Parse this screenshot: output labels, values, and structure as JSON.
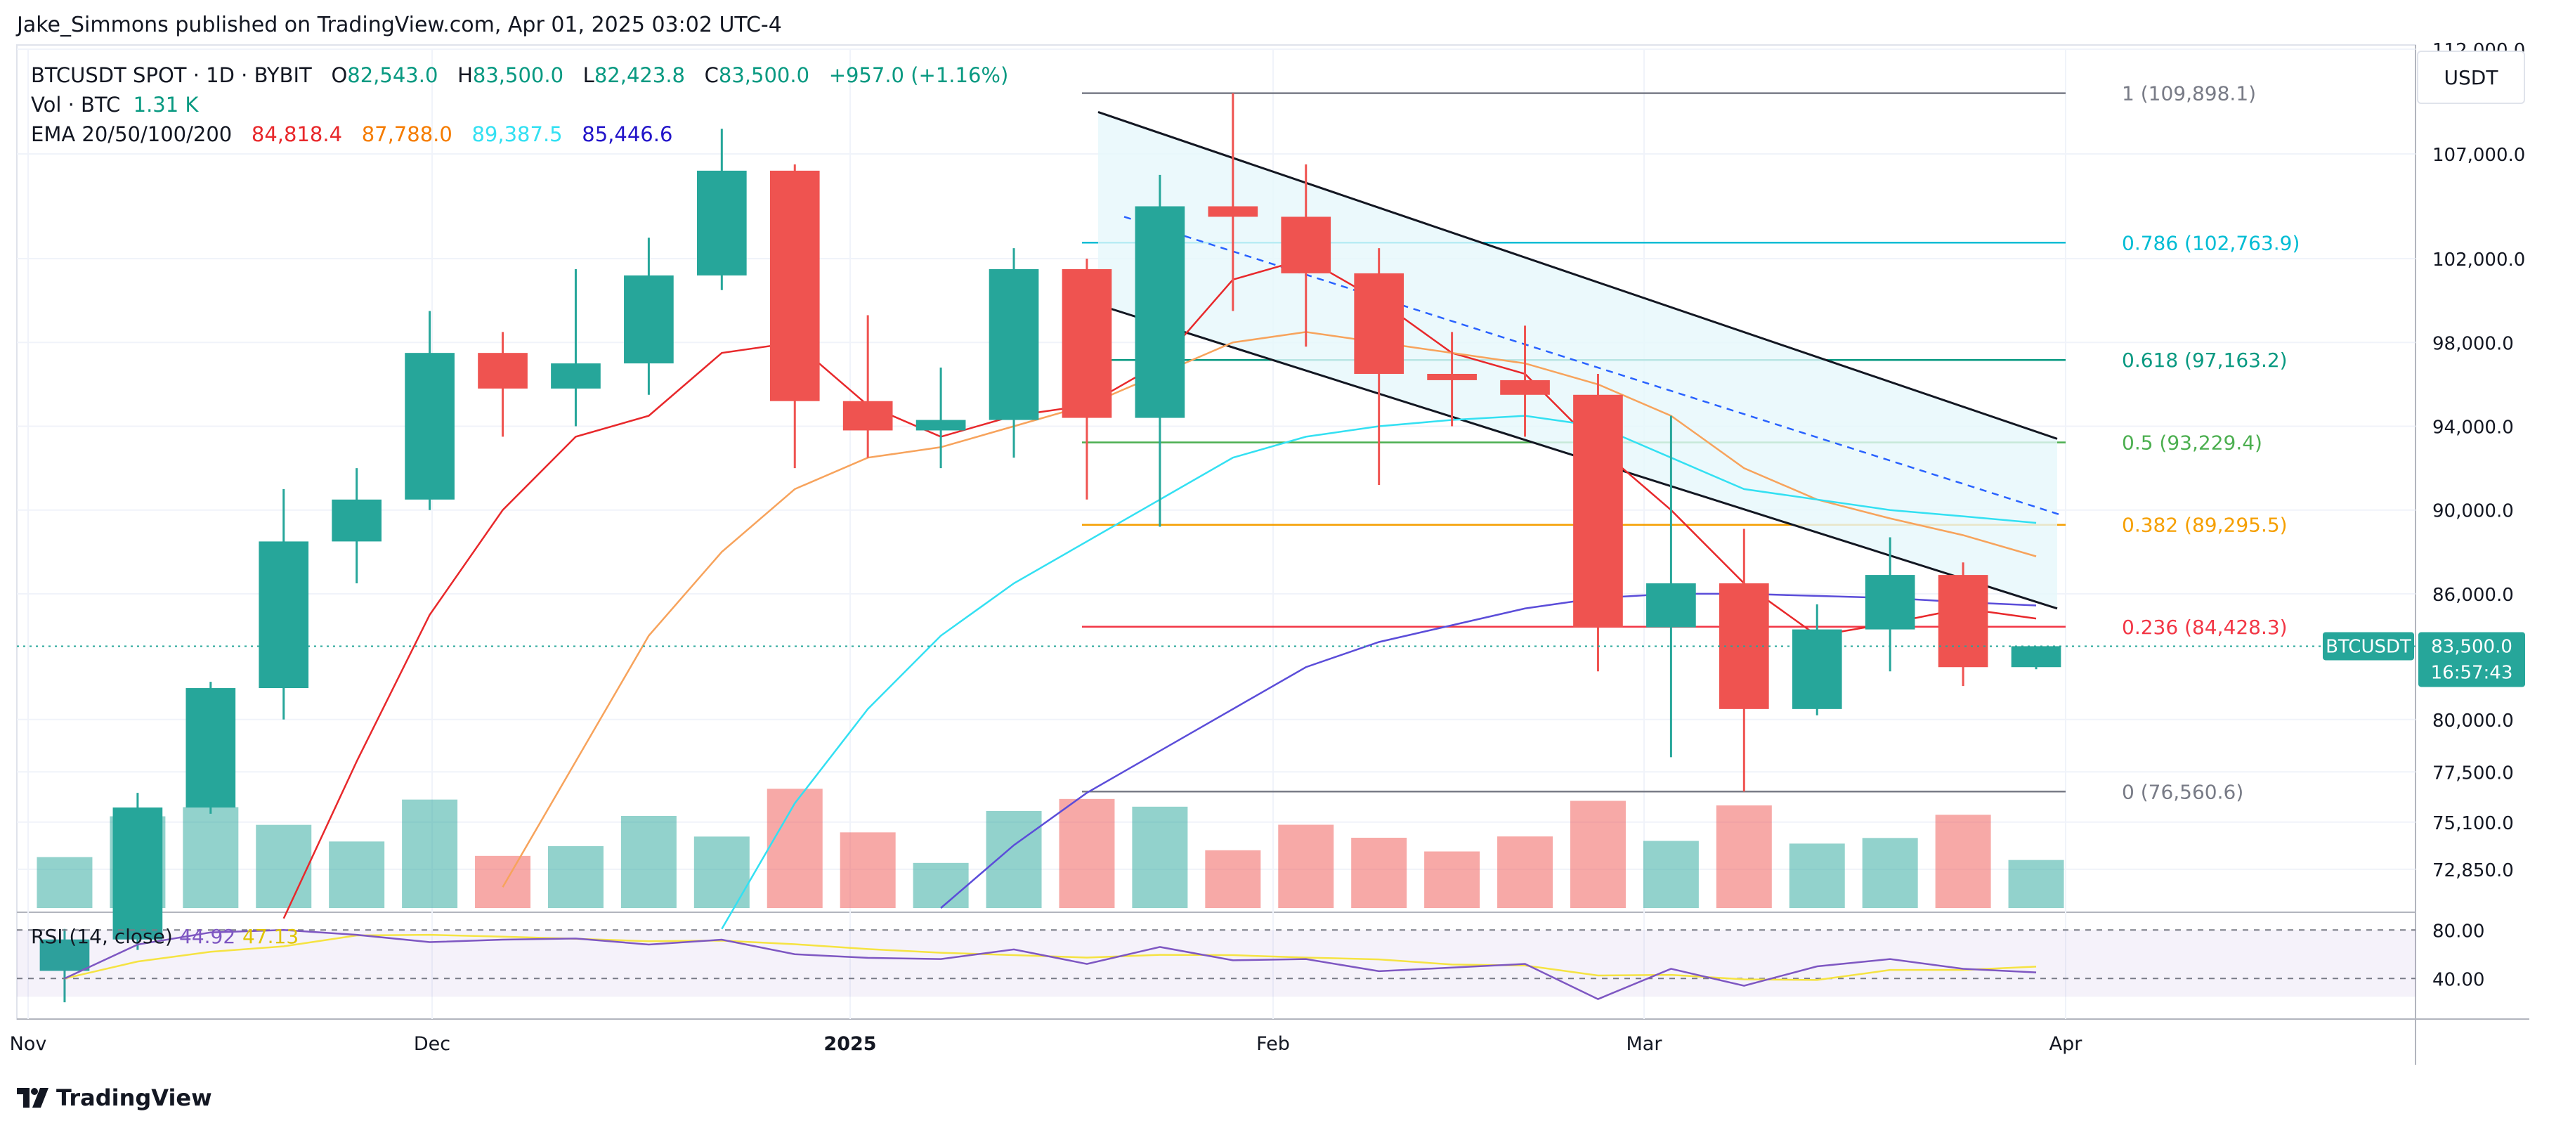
{
  "header": {
    "publisher": "Jake_Simmons published on TradingView.com, Apr 01, 2025 03:02 UTC-4"
  },
  "legend": {
    "symbol": "BTCUSDT SPOT · 1D · BYBIT",
    "o_key": "O",
    "o_val": "82,543.0",
    "h_key": "H",
    "h_val": "83,500.0",
    "l_key": "L",
    "l_val": "82,423.8",
    "c_key": "C",
    "c_val": "83,500.0",
    "change": "+957.0 (+1.16%)",
    "vol_label": "Vol · BTC",
    "vol_val": "1.31 K",
    "ema_label": "EMA 20/50/100/200",
    "ema20": "84,818.4",
    "ema50": "87,788.0",
    "ema100": "89,387.5",
    "ema200": "85,446.6"
  },
  "currency_button": "USDT",
  "brand": "TradingView",
  "colors": {
    "up": "#26a69a",
    "down": "#ef5350",
    "ema20": "#e8282b",
    "ema50": "#f7a35c",
    "ema100": "#33e0f2",
    "ema200": "#5b4dd9",
    "rsi": "#7e57c2",
    "rsi_ma": "#f5e342"
  },
  "chart_data": {
    "type": "candlestick",
    "symbol": "BTCUSDT",
    "ylim": [
      71000,
      112000
    ],
    "price_axis_ticks": [
      "112,000.0",
      "107,000.0",
      "102,000.0",
      "98,000.0",
      "94,000.0",
      "90,000.0",
      "86,000.0",
      "80,000.0",
      "77,500.0",
      "75,100.0",
      "72,850.0"
    ],
    "time_axis_ticks": [
      "Nov",
      "Dec",
      "2025",
      "Feb",
      "Mar",
      "Apr"
    ],
    "last_price": {
      "symbol": "BTCUSDT",
      "price": "83,500.0",
      "countdown": "16:57:43",
      "value": 83500
    },
    "fibonacci": [
      {
        "label": "1 (109,898.1)",
        "value": 109898.1,
        "color": "#787b86"
      },
      {
        "label": "0.786 (102,763.9)",
        "value": 102763.9,
        "color": "#00bcd4"
      },
      {
        "label": "0.618 (97,163.2)",
        "value": 97163.2,
        "color": "#089981"
      },
      {
        "label": "0.5 (93,229.4)",
        "value": 93229.4,
        "color": "#4caf50"
      },
      {
        "label": "0.382 (89,295.5)",
        "value": 89295.5,
        "color": "#f59f00"
      },
      {
        "label": "0.236 (84,428.3)",
        "value": 84428.3,
        "color": "#f23645"
      },
      {
        "label": "0 (76,560.6)",
        "value": 76560.6,
        "color": "#787b86"
      }
    ],
    "ohlc_weekly_approx": [
      [
        68000,
        70000,
        66500,
        69500
      ],
      [
        69500,
        76500,
        69000,
        75800
      ],
      [
        75800,
        81800,
        75500,
        81500
      ],
      [
        81500,
        91000,
        80000,
        88500
      ],
      [
        88500,
        92000,
        86500,
        90500
      ],
      [
        90500,
        99500,
        90000,
        97500
      ],
      [
        97500,
        98500,
        93500,
        95800
      ],
      [
        95800,
        101500,
        94000,
        97000
      ],
      [
        97000,
        103000,
        95500,
        101200
      ],
      [
        101200,
        108200,
        100500,
        106200
      ],
      [
        106200,
        106500,
        92000,
        95200
      ],
      [
        95200,
        99300,
        92500,
        93800
      ],
      [
        93800,
        96800,
        92000,
        94300
      ],
      [
        94300,
        102500,
        92500,
        101500
      ],
      [
        101500,
        102000,
        90500,
        94400
      ],
      [
        94400,
        106000,
        89200,
        104500
      ],
      [
        104500,
        109900,
        99500,
        104000
      ],
      [
        104000,
        106500,
        97800,
        101300
      ],
      [
        101300,
        102500,
        91200,
        96500
      ],
      [
        96500,
        98500,
        94000,
        96200
      ],
      [
        96200,
        98800,
        93500,
        95500
      ],
      [
        95500,
        96500,
        82300,
        84400
      ],
      [
        84400,
        94500,
        78200,
        86500
      ],
      [
        86500,
        89100,
        76560,
        80500
      ],
      [
        80500,
        85500,
        80200,
        84300
      ],
      [
        84300,
        88700,
        82300,
        86900
      ],
      [
        86900,
        87500,
        81600,
        82500
      ],
      [
        82500,
        83500,
        82400,
        83500
      ]
    ],
    "ema_series_approx": {
      "EMA20": [
        null,
        null,
        null,
        70500,
        78000,
        85000,
        90000,
        93500,
        94500,
        97500,
        98000,
        95000,
        93500,
        94500,
        95000,
        97000,
        101000,
        102000,
        100000,
        97500,
        96500,
        93000,
        90000,
        86500,
        84000,
        84600,
        85300,
        84818
      ],
      "EMA50": [
        null,
        null,
        null,
        null,
        null,
        null,
        72000,
        78000,
        84000,
        88000,
        91000,
        92500,
        93000,
        94000,
        95000,
        96500,
        98000,
        98500,
        98000,
        97500,
        97000,
        96000,
        94500,
        92000,
        90500,
        89600,
        88800,
        87788
      ],
      "EMA100": [
        null,
        null,
        null,
        null,
        null,
        null,
        null,
        null,
        null,
        70000,
        76000,
        80500,
        84000,
        86500,
        88500,
        90500,
        92500,
        93500,
        94000,
        94300,
        94500,
        94000,
        92500,
        91000,
        90500,
        90000,
        89700,
        89387
      ],
      "EMA200": [
        null,
        null,
        null,
        null,
        null,
        null,
        null,
        null,
        null,
        null,
        null,
        null,
        71000,
        74000,
        76500,
        78500,
        80500,
        82500,
        83700,
        84500,
        85300,
        85800,
        86000,
        86000,
        85900,
        85800,
        85600,
        85446
      ]
    },
    "volume_axis_note": "volume bars below price",
    "rsi": {
      "label": "RSI (14, close)",
      "value": "44.92",
      "ma": "47.13",
      "levels": [
        "80.00",
        "40.00"
      ],
      "ylim": [
        10,
        90
      ],
      "series_approx": [
        40,
        68,
        78,
        80,
        76,
        70,
        72,
        73,
        68,
        72,
        60,
        57,
        56,
        64,
        52,
        66,
        55,
        56,
        46,
        49,
        52,
        23,
        48,
        34,
        50,
        56,
        48,
        45
      ]
    }
  }
}
